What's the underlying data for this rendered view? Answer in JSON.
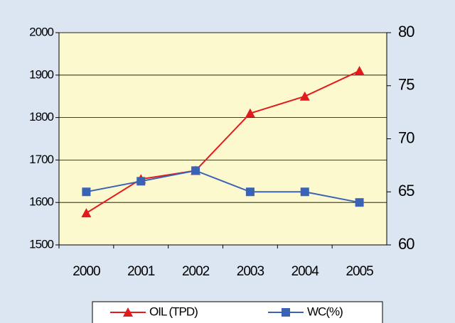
{
  "chart_data": {
    "type": "line",
    "categories": [
      "2000",
      "2001",
      "2002",
      "2003",
      "2004",
      "2005"
    ],
    "series": [
      {
        "name": "OIL (TPD)",
        "color": "#e31a1c",
        "marker": "triangle",
        "values": [
          1575,
          1655,
          1675,
          1810,
          1850,
          1910
        ]
      },
      {
        "name": "WC(%)",
        "color": "#3a62b5",
        "marker": "square",
        "axis": "y2",
        "values": [
          65,
          66,
          67,
          65,
          65,
          64
        ]
      }
    ],
    "ylim": [
      1500,
      2000
    ],
    "yticks": [
      1500,
      1600,
      1700,
      1800,
      1900,
      2000
    ],
    "y2lim": [
      60,
      80
    ],
    "y2ticks": [
      60,
      65,
      70,
      75,
      80
    ],
    "grid": true,
    "legend": "bottom"
  }
}
